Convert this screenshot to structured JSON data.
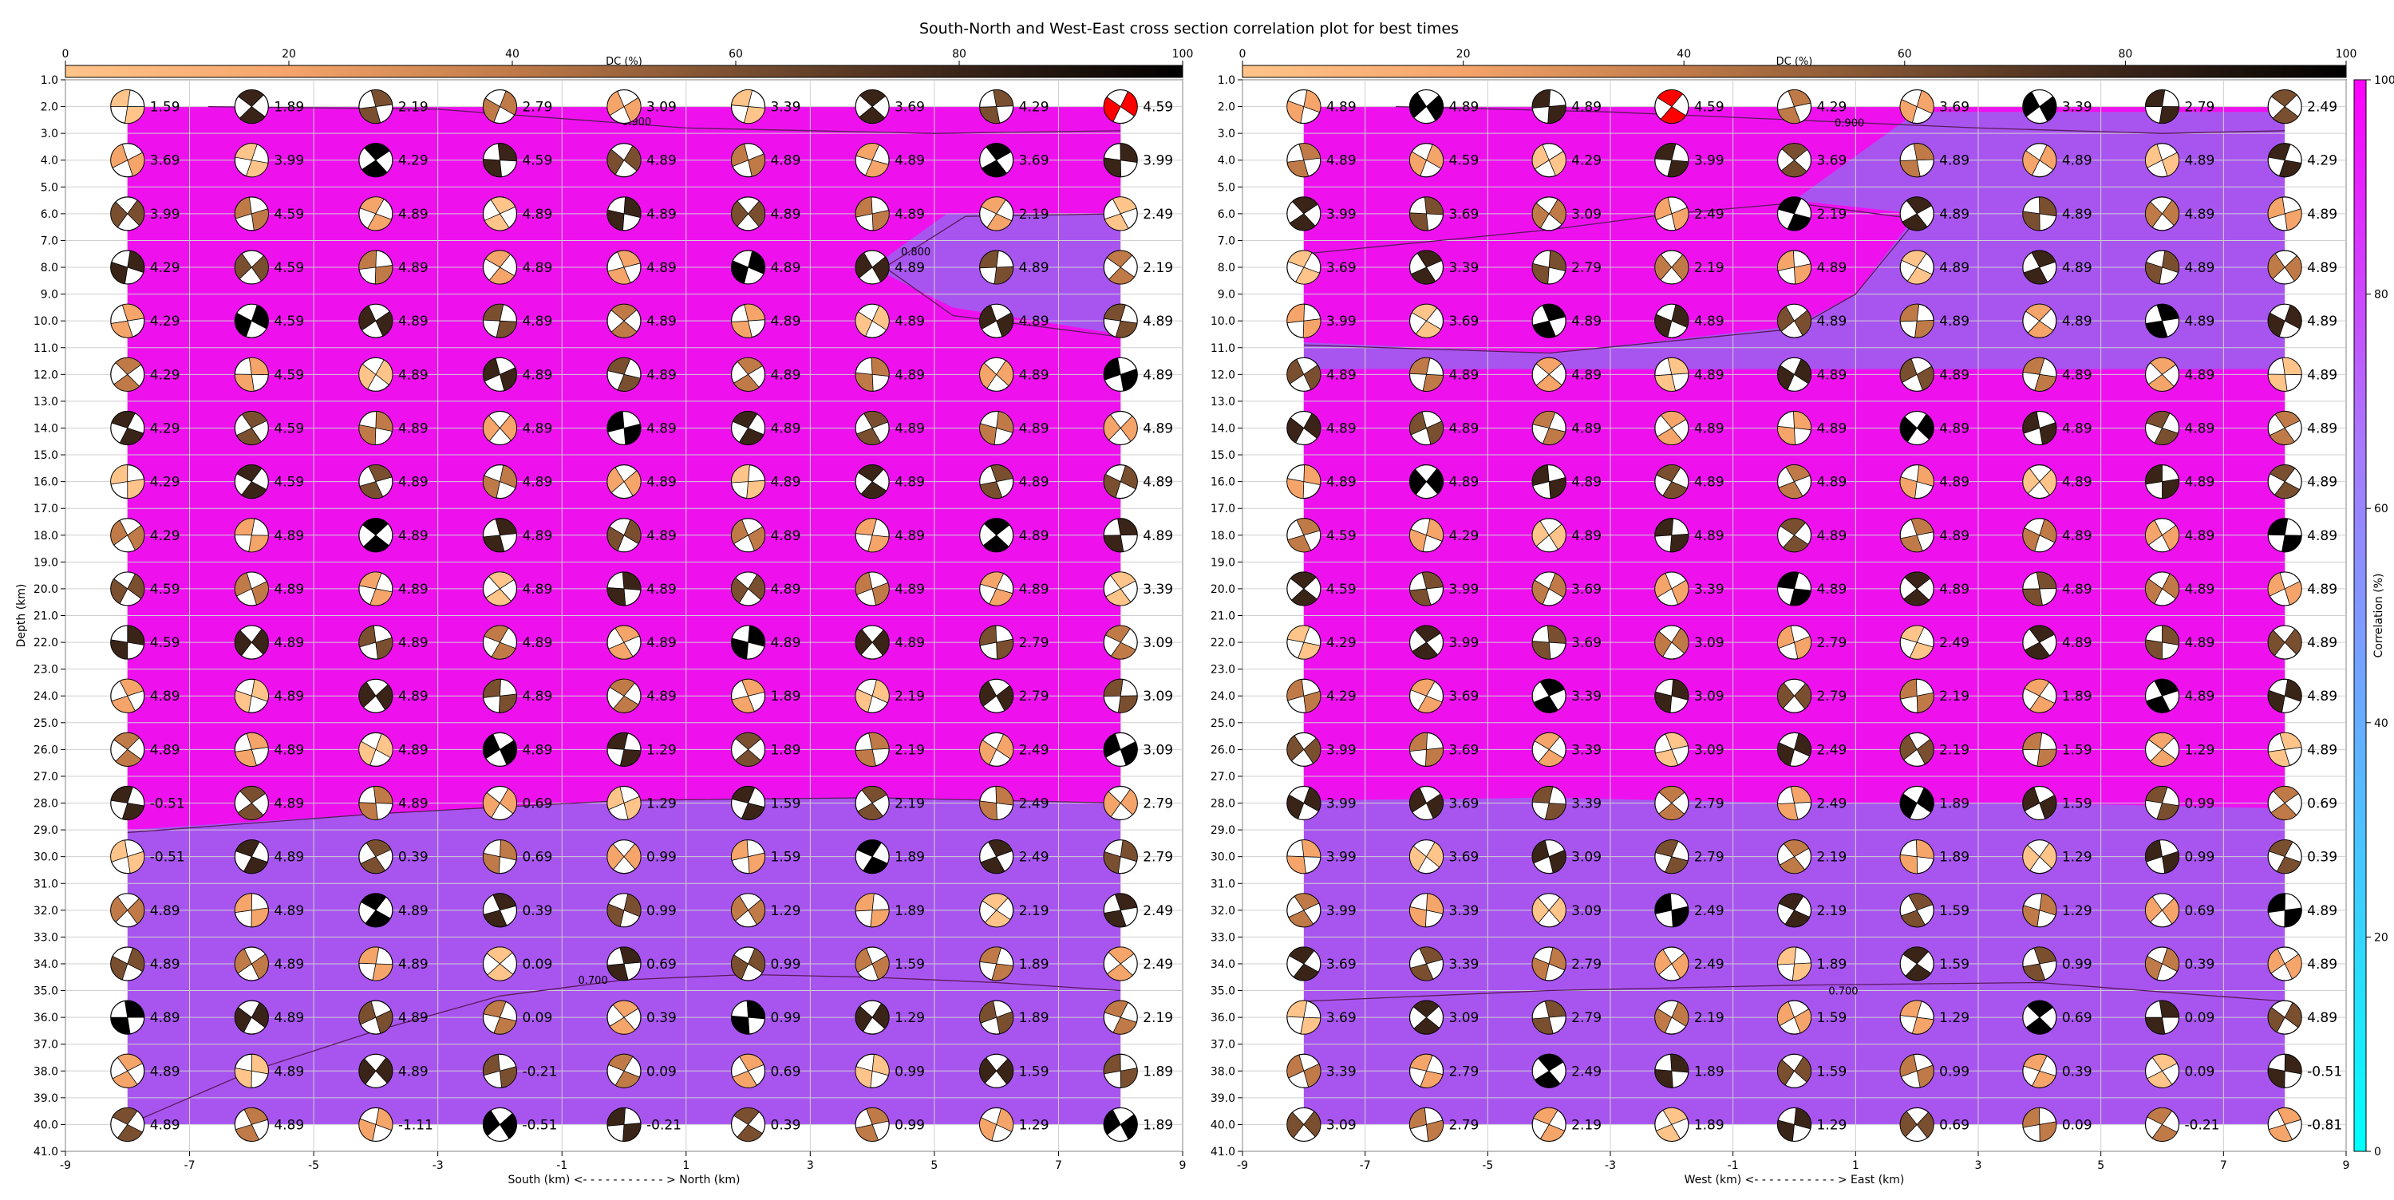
{
  "title": "South-North and West-East cross section correlation plot for best times",
  "colors": {
    "plot_fill_high": "#ee11ee",
    "plot_fill_mid": "#a855f0",
    "contour_line": "#5a1a5a",
    "dc_cmap": [
      "#ffc48a",
      "#f5a46a",
      "#c07a48",
      "#7a4f30",
      "#3a2418",
      "#000000"
    ],
    "corr_cmap": [
      "#00ffff",
      "#55bbff",
      "#aa77ff",
      "#ff00ff"
    ],
    "highlight_beachball": "#ff0000"
  },
  "dc_colorbar": {
    "label": "DC (%)",
    "ticks": [
      "0",
      "20",
      "40",
      "60",
      "80",
      "100"
    ]
  },
  "corr_colorbar": {
    "label": "Correlation (%)",
    "ticks": [
      "0",
      "20",
      "40",
      "60",
      "80",
      "100"
    ]
  },
  "depth_axis": {
    "label": "Depth (km)",
    "ticks": [
      "1.0",
      "2.0",
      "3.0",
      "4.0",
      "5.0",
      "6.0",
      "7.0",
      "8.0",
      "9.0",
      "10.0",
      "11.0",
      "12.0",
      "13.0",
      "14.0",
      "15.0",
      "16.0",
      "17.0",
      "18.0",
      "19.0",
      "20.0",
      "21.0",
      "22.0",
      "23.0",
      "24.0",
      "25.0",
      "26.0",
      "27.0",
      "28.0",
      "29.0",
      "30.0",
      "31.0",
      "32.0",
      "33.0",
      "34.0",
      "35.0",
      "36.0",
      "37.0",
      "38.0",
      "39.0",
      "40.0",
      "41.0"
    ]
  },
  "chart_data": [
    {
      "type": "heatmap",
      "panel": "South-North",
      "xlabel": "South (km) <- - - - - - - - - - - > North (km)",
      "xlim": [
        -9,
        9
      ],
      "x_ticks": [
        "-9",
        "-7",
        "-5",
        "-3",
        "-1",
        "1",
        "3",
        "5",
        "7",
        "9"
      ],
      "ylim": [
        41,
        1
      ],
      "positions_km": [
        -8,
        -6,
        -4,
        -2,
        0,
        2,
        4,
        6,
        8
      ],
      "depths_km": [
        2,
        4,
        6,
        8,
        10,
        12,
        14,
        16,
        18,
        20,
        22,
        24,
        26,
        28,
        30,
        32,
        34,
        36,
        38,
        40
      ],
      "time_labels": [
        [
          "1.59",
          "1.89",
          "2.19",
          "2.79",
          "3.09",
          "3.39",
          "3.69",
          "4.29",
          "4.59"
        ],
        [
          "3.69",
          "3.99",
          "4.29",
          "4.59",
          "4.89",
          "4.89",
          "4.89",
          "3.69",
          "3.99"
        ],
        [
          "3.99",
          "4.59",
          "4.89",
          "4.89",
          "4.89",
          "4.89",
          "4.89",
          "2.19",
          "2.49"
        ],
        [
          "4.29",
          "4.59",
          "4.89",
          "4.89",
          "4.89",
          "4.89",
          "4.89",
          "4.89",
          "2.19"
        ],
        [
          "4.29",
          "4.59",
          "4.89",
          "4.89",
          "4.89",
          "4.89",
          "4.89",
          "4.89",
          "4.89"
        ],
        [
          "4.29",
          "4.59",
          "4.89",
          "4.89",
          "4.89",
          "4.89",
          "4.89",
          "4.89",
          "4.89"
        ],
        [
          "4.29",
          "4.59",
          "4.89",
          "4.89",
          "4.89",
          "4.89",
          "4.89",
          "4.89",
          "4.89"
        ],
        [
          "4.29",
          "4.59",
          "4.89",
          "4.89",
          "4.89",
          "4.89",
          "4.89",
          "4.89",
          "4.89"
        ],
        [
          "4.29",
          "4.89",
          "4.89",
          "4.89",
          "4.89",
          "4.89",
          "4.89",
          "4.89",
          "4.89"
        ],
        [
          "4.59",
          "4.89",
          "4.89",
          "4.89",
          "4.89",
          "4.89",
          "4.89",
          "4.89",
          "3.39"
        ],
        [
          "4.59",
          "4.89",
          "4.89",
          "4.89",
          "4.89",
          "4.89",
          "4.89",
          "2.79",
          "3.09"
        ],
        [
          "4.89",
          "4.89",
          "4.89",
          "4.89",
          "4.89",
          "1.89",
          "2.19",
          "2.79",
          "3.09"
        ],
        [
          "4.89",
          "4.89",
          "4.89",
          "4.89",
          "1.29",
          "1.89",
          "2.19",
          "2.49",
          "3.09"
        ],
        [
          "-0.51",
          "4.89",
          "4.89",
          "0.69",
          "1.29",
          "1.59",
          "2.19",
          "2.49",
          "2.79"
        ],
        [
          "-0.51",
          "4.89",
          "0.39",
          "0.69",
          "0.99",
          "1.59",
          "1.89",
          "2.49",
          "2.79"
        ],
        [
          "4.89",
          "4.89",
          "4.89",
          "0.39",
          "0.99",
          "1.29",
          "1.89",
          "2.19",
          "2.49"
        ],
        [
          "4.89",
          "4.89",
          "4.89",
          "0.09",
          "0.69",
          "0.99",
          "1.59",
          "1.89",
          "2.49"
        ],
        [
          "4.89",
          "4.89",
          "4.89",
          "0.09",
          "0.39",
          "0.99",
          "1.29",
          "1.89",
          "2.19"
        ],
        [
          "4.89",
          "4.89",
          "4.89",
          "-0.21",
          "0.09",
          "0.69",
          "0.99",
          "1.59",
          "1.89"
        ],
        [
          "4.89",
          "4.89",
          "-1.11",
          "-0.51",
          "-0.21",
          "0.39",
          "0.99",
          "1.29",
          "1.89"
        ]
      ],
      "contour_labels": [
        "0.900",
        "0.800",
        "0.700"
      ]
    },
    {
      "type": "heatmap",
      "panel": "West-East",
      "xlabel": "West (km) <- - - - - - - - - - - > East (km)",
      "xlim": [
        -9,
        9
      ],
      "x_ticks": [
        "-9",
        "-7",
        "-5",
        "-3",
        "-1",
        "1",
        "3",
        "5",
        "7",
        "9"
      ],
      "ylim": [
        41,
        1
      ],
      "positions_km": [
        -8,
        -6,
        -4,
        -2,
        0,
        2,
        4,
        6,
        8
      ],
      "depths_km": [
        2,
        4,
        6,
        8,
        10,
        12,
        14,
        16,
        18,
        20,
        22,
        24,
        26,
        28,
        30,
        32,
        34,
        36,
        38,
        40
      ],
      "time_labels": [
        [
          "4.89",
          "4.89",
          "4.89",
          "4.59",
          "4.29",
          "3.69",
          "3.39",
          "2.79",
          "2.49"
        ],
        [
          "4.89",
          "4.59",
          "4.29",
          "3.99",
          "3.69",
          "4.89",
          "4.89",
          "4.89",
          "4.29"
        ],
        [
          "3.99",
          "3.69",
          "3.09",
          "2.49",
          "2.19",
          "4.89",
          "4.89",
          "4.89",
          "4.89"
        ],
        [
          "3.69",
          "3.39",
          "2.79",
          "2.19",
          "4.89",
          "4.89",
          "4.89",
          "4.89",
          "4.89"
        ],
        [
          "3.99",
          "3.69",
          "4.89",
          "4.89",
          "4.89",
          "4.89",
          "4.89",
          "4.89",
          "4.89"
        ],
        [
          "4.89",
          "4.89",
          "4.89",
          "4.89",
          "4.89",
          "4.89",
          "4.89",
          "4.89",
          "4.89"
        ],
        [
          "4.89",
          "4.89",
          "4.89",
          "4.89",
          "4.89",
          "4.89",
          "4.89",
          "4.89",
          "4.89"
        ],
        [
          "4.89",
          "4.89",
          "4.89",
          "4.89",
          "4.89",
          "4.89",
          "4.89",
          "4.89",
          "4.89"
        ],
        [
          "4.59",
          "4.29",
          "4.89",
          "4.89",
          "4.89",
          "4.89",
          "4.89",
          "4.89",
          "4.89"
        ],
        [
          "4.59",
          "3.99",
          "3.69",
          "3.39",
          "4.89",
          "4.89",
          "4.89",
          "4.89",
          "4.89"
        ],
        [
          "4.29",
          "3.99",
          "3.69",
          "3.09",
          "2.79",
          "2.49",
          "4.89",
          "4.89",
          "4.89"
        ],
        [
          "4.29",
          "3.69",
          "3.39",
          "3.09",
          "2.79",
          "2.19",
          "1.89",
          "4.89",
          "4.89"
        ],
        [
          "3.99",
          "3.69",
          "3.39",
          "3.09",
          "2.49",
          "2.19",
          "1.59",
          "1.29",
          "4.89"
        ],
        [
          "3.99",
          "3.69",
          "3.39",
          "2.79",
          "2.49",
          "1.89",
          "1.59",
          "0.99",
          "0.69"
        ],
        [
          "3.99",
          "3.69",
          "3.09",
          "2.79",
          "2.19",
          "1.89",
          "1.29",
          "0.99",
          "0.39"
        ],
        [
          "3.99",
          "3.39",
          "3.09",
          "2.49",
          "2.19",
          "1.59",
          "1.29",
          "0.69",
          "4.89"
        ],
        [
          "3.69",
          "3.39",
          "2.79",
          "2.49",
          "1.89",
          "1.59",
          "0.99",
          "0.39",
          "4.89"
        ],
        [
          "3.69",
          "3.09",
          "2.79",
          "2.19",
          "1.59",
          "1.29",
          "0.69",
          "0.09",
          "4.89"
        ],
        [
          "3.39",
          "2.79",
          "2.49",
          "1.89",
          "1.59",
          "0.99",
          "0.39",
          "0.09",
          "-0.51"
        ],
        [
          "3.09",
          "2.79",
          "2.19",
          "1.89",
          "1.29",
          "0.69",
          "0.09",
          "-0.21",
          "-0.81"
        ]
      ],
      "contour_labels": [
        "0.900",
        "0.700"
      ]
    }
  ]
}
